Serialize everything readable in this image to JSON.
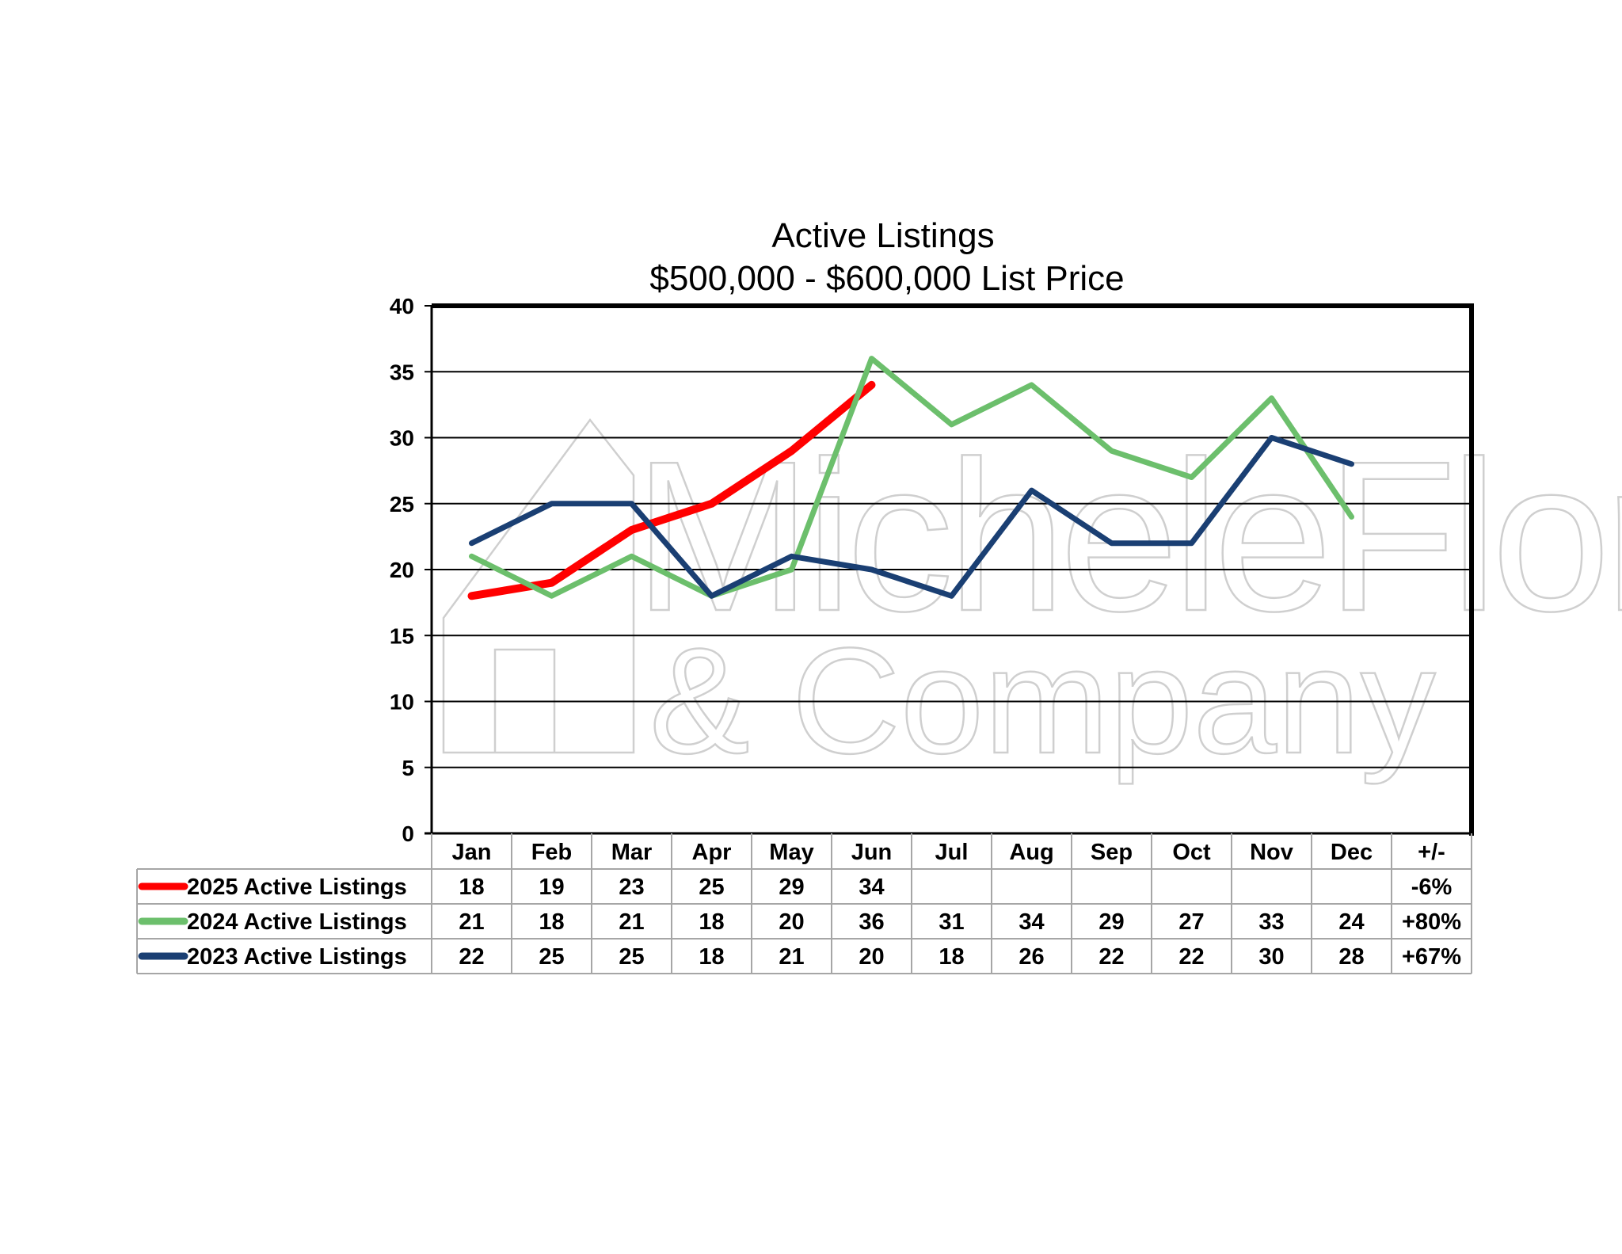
{
  "watermark": {
    "line1": "MicheleFlory",
    "line2": "& Company"
  },
  "chart_data": {
    "type": "line",
    "title": [
      "Active Listings",
      "$500,000 - $600,000 List Price"
    ],
    "categories": [
      "Jan",
      "Feb",
      "Mar",
      "Apr",
      "May",
      "Jun",
      "Jul",
      "Aug",
      "Sep",
      "Oct",
      "Nov",
      "Dec"
    ],
    "change_header": "+/-",
    "ylim": [
      0,
      40
    ],
    "yticks": [
      0,
      5,
      10,
      15,
      20,
      25,
      30,
      35,
      40
    ],
    "grid": true,
    "legend": "data-table-left",
    "series": [
      {
        "name": "2025 Active Listings",
        "color": "#ff0000",
        "values": [
          18,
          19,
          23,
          25,
          29,
          34,
          null,
          null,
          null,
          null,
          null,
          null
        ],
        "change": "-6%"
      },
      {
        "name": "2024 Active Listings",
        "color": "#6cbf6c",
        "values": [
          21,
          18,
          21,
          18,
          20,
          36,
          31,
          34,
          29,
          27,
          33,
          24
        ],
        "change": "+80%"
      },
      {
        "name": "2023 Active Listings",
        "color": "#1a3f73",
        "values": [
          22,
          25,
          25,
          18,
          21,
          20,
          18,
          26,
          22,
          22,
          30,
          28
        ],
        "change": "+67%"
      }
    ]
  }
}
